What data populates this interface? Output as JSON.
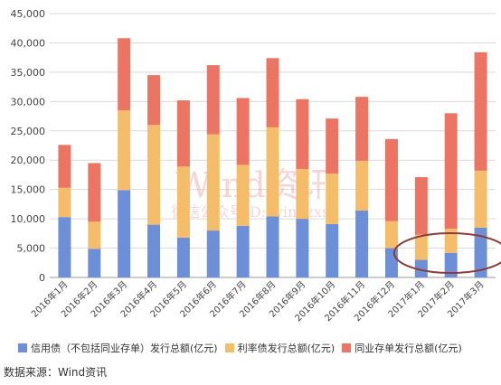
{
  "chart_data": {
    "type": "bar",
    "stacked": true,
    "categories": [
      "2016年1月",
      "2016年2月",
      "2016年3月",
      "2016年4月",
      "2016年5月",
      "2016年6月",
      "2016年7月",
      "2016年8月",
      "2016年9月",
      "2016年10月",
      "2016年11月",
      "2016年12月",
      "2017年1月",
      "2017年2月",
      "2017年3月"
    ],
    "series": [
      {
        "name": "信用债（不包括同业存单）发行总额(亿元)",
        "color": "#6d8fd8",
        "values": [
          10300,
          4900,
          14900,
          9000,
          6800,
          8000,
          8800,
          10400,
          10000,
          9100,
          11400,
          5000,
          3000,
          4200,
          8500
        ]
      },
      {
        "name": "利率债发行总额(亿元)",
        "color": "#f5bd6a",
        "values": [
          5000,
          4600,
          13600,
          17000,
          12100,
          16400,
          10400,
          15200,
          8500,
          8600,
          8500,
          4600,
          4300,
          4100,
          9700
        ]
      },
      {
        "name": "同业存单发行总额(亿元)",
        "color": "#ec7463",
        "values": [
          7300,
          10000,
          12300,
          8500,
          11300,
          11800,
          11400,
          11800,
          11900,
          9400,
          10900,
          14000,
          9800,
          19700,
          20200
        ]
      }
    ],
    "ylim": [
      0,
      45000
    ],
    "yticks": [
      "0",
      "5,000",
      "10,000",
      "15,000",
      "20,000",
      "25,000",
      "30,000",
      "35,000",
      "40,000",
      "45,000"
    ],
    "grid": true,
    "legend_position": "bottom",
    "annotation": "ellipse around 2017年1月-2017年3月 bases"
  },
  "watermark": {
    "line1": "Wind资讯",
    "line2": "微信公众号ID: windzxsh"
  },
  "source": "数据来源：Wind资讯"
}
